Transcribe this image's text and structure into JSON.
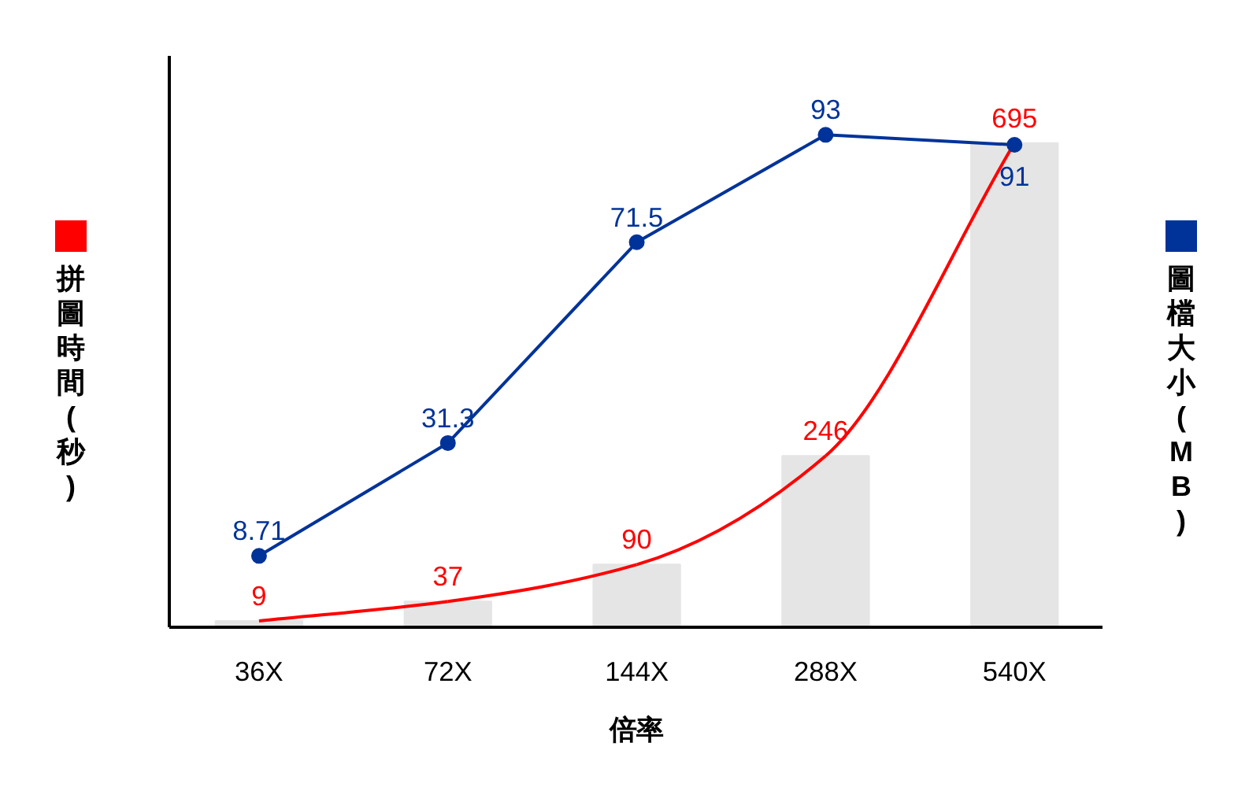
{
  "chart_data": {
    "type": "bar",
    "xlabel": "倍率",
    "ylabel": "拼圖時間 (秒)",
    "y2label": "圖檔大小 (MB)",
    "categories": [
      "36X",
      "72X",
      "144X",
      "288X",
      "540X"
    ],
    "series": [
      {
        "color": "#e5e5e5",
        "values": [
          9,
          37,
          90,
          246,
          695
        ]
      },
      {
        "type": "line",
        "color": "#ff0000",
        "values": [
          9,
          37,
          90,
          246,
          695
        ],
        "value_labels": [
          "9",
          "37",
          "90",
          "246",
          "695"
        ],
        "marker": "none"
      },
      {
        "type": "line",
        "axis": "y2",
        "color": "#003399",
        "values": [
          8.71,
          31.3,
          71.5,
          93,
          91
        ],
        "value_labels": [
          "8.71",
          "31.3",
          "71.5",
          "93",
          "91"
        ],
        "marker": "circle"
      }
    ],
    "grid": false,
    "tick_labels": "x"
  }
}
